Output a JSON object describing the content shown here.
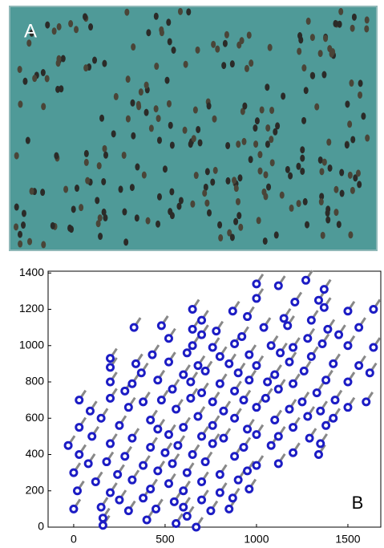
{
  "panel_a": {
    "label": "A"
  },
  "chart_data": {
    "type": "scatter",
    "panel_label": "B",
    "color": "#1c1cc4",
    "x": [
      1000,
      1120,
      1270,
      1370,
      1000,
      1210,
      1340,
      650,
      870,
      1370,
      1500,
      1640,
      700,
      950,
      1150,
      1300,
      330,
      480,
      650,
      780,
      1040,
      1170,
      1390,
      1560,
      520,
      700,
      920,
      1280,
      1450,
      650,
      760,
      880,
      1080,
      1200,
      1360,
      1500,
      1640,
      200,
      430,
      620,
      800,
      960,
      1130,
      1300,
      200,
      340,
      520,
      680,
      850,
      1000,
      1180,
      1420,
      1560,
      370,
      600,
      720,
      900,
      1100,
      1260,
      1620,
      200,
      320,
      460,
      640,
      800,
      960,
      1060,
      1200,
      1380,
      1500,
      280,
      540,
      700,
      880,
      1120,
      1330,
      30,
      200,
      380,
      480,
      640,
      760,
      930,
      1050,
      1250,
      1430,
      1600,
      90,
      300,
      560,
      820,
      1000,
      1180,
      1350,
      1500,
      150,
      420,
      680,
      880,
      1100,
      1280,
      1420,
      30,
      250,
      460,
      600,
      760,
      950,
      1200,
      1380,
      100,
      320,
      520,
      700,
      820,
      1000,
      1120,
      1290,
      -30,
      200,
      420,
      570,
      760,
      930,
      1080,
      1350,
      30,
      280,
      500,
      650,
      880,
      1200,
      1340,
      80,
      180,
      380,
      540,
      720,
      1000,
      1120,
      0,
      240,
      460,
      620,
      800,
      950,
      120,
      320,
      520,
      700,
      900,
      20,
      200,
      420,
      600,
      800,
      960,
      250,
      380,
      550,
      700,
      870,
      0,
      150,
      300,
      450,
      600,
      750,
      850,
      160,
      400,
      620,
      160,
      560,
      670
    ],
    "values": [
      1340,
      1330,
      1360,
      1310,
      1260,
      1240,
      1250,
      1200,
      1190,
      1210,
      1190,
      1200,
      1140,
      1160,
      1150,
      1140,
      1100,
      1110,
      1090,
      1080,
      1100,
      1110,
      1090,
      1100,
      1040,
      1060,
      1050,
      1040,
      1060,
      1000,
      990,
      1010,
      1000,
      990,
      1010,
      1000,
      990,
      930,
      950,
      960,
      940,
      950,
      960,
      940,
      880,
      900,
      910,
      890,
      900,
      890,
      910,
      900,
      890,
      850,
      840,
      860,
      850,
      840,
      860,
      850,
      800,
      790,
      810,
      800,
      790,
      810,
      800,
      790,
      810,
      800,
      750,
      760,
      740,
      750,
      760,
      740,
      700,
      710,
      690,
      700,
      710,
      690,
      700,
      710,
      690,
      700,
      690,
      640,
      660,
      650,
      640,
      660,
      650,
      640,
      660,
      600,
      590,
      610,
      600,
      590,
      610,
      600,
      550,
      560,
      540,
      550,
      560,
      540,
      550,
      560,
      500,
      490,
      510,
      500,
      490,
      510,
      500,
      490,
      450,
      460,
      440,
      450,
      460,
      440,
      450,
      460,
      400,
      390,
      410,
      400,
      390,
      410,
      400,
      350,
      360,
      340,
      350,
      360,
      340,
      350,
      300,
      290,
      310,
      300,
      290,
      310,
      250,
      260,
      240,
      250,
      260,
      200,
      190,
      210,
      200,
      190,
      210,
      150,
      160,
      140,
      150,
      160,
      100,
      110,
      90,
      100,
      110,
      90,
      100,
      50,
      40,
      60,
      10,
      20,
      0
    ],
    "xlim": [
      -140,
      1680
    ],
    "ylim": [
      0,
      1410
    ],
    "xticks": [
      0,
      500,
      1000,
      1500
    ],
    "yticks": [
      0,
      200,
      400,
      600,
      800,
      1000,
      1200,
      1400
    ]
  }
}
